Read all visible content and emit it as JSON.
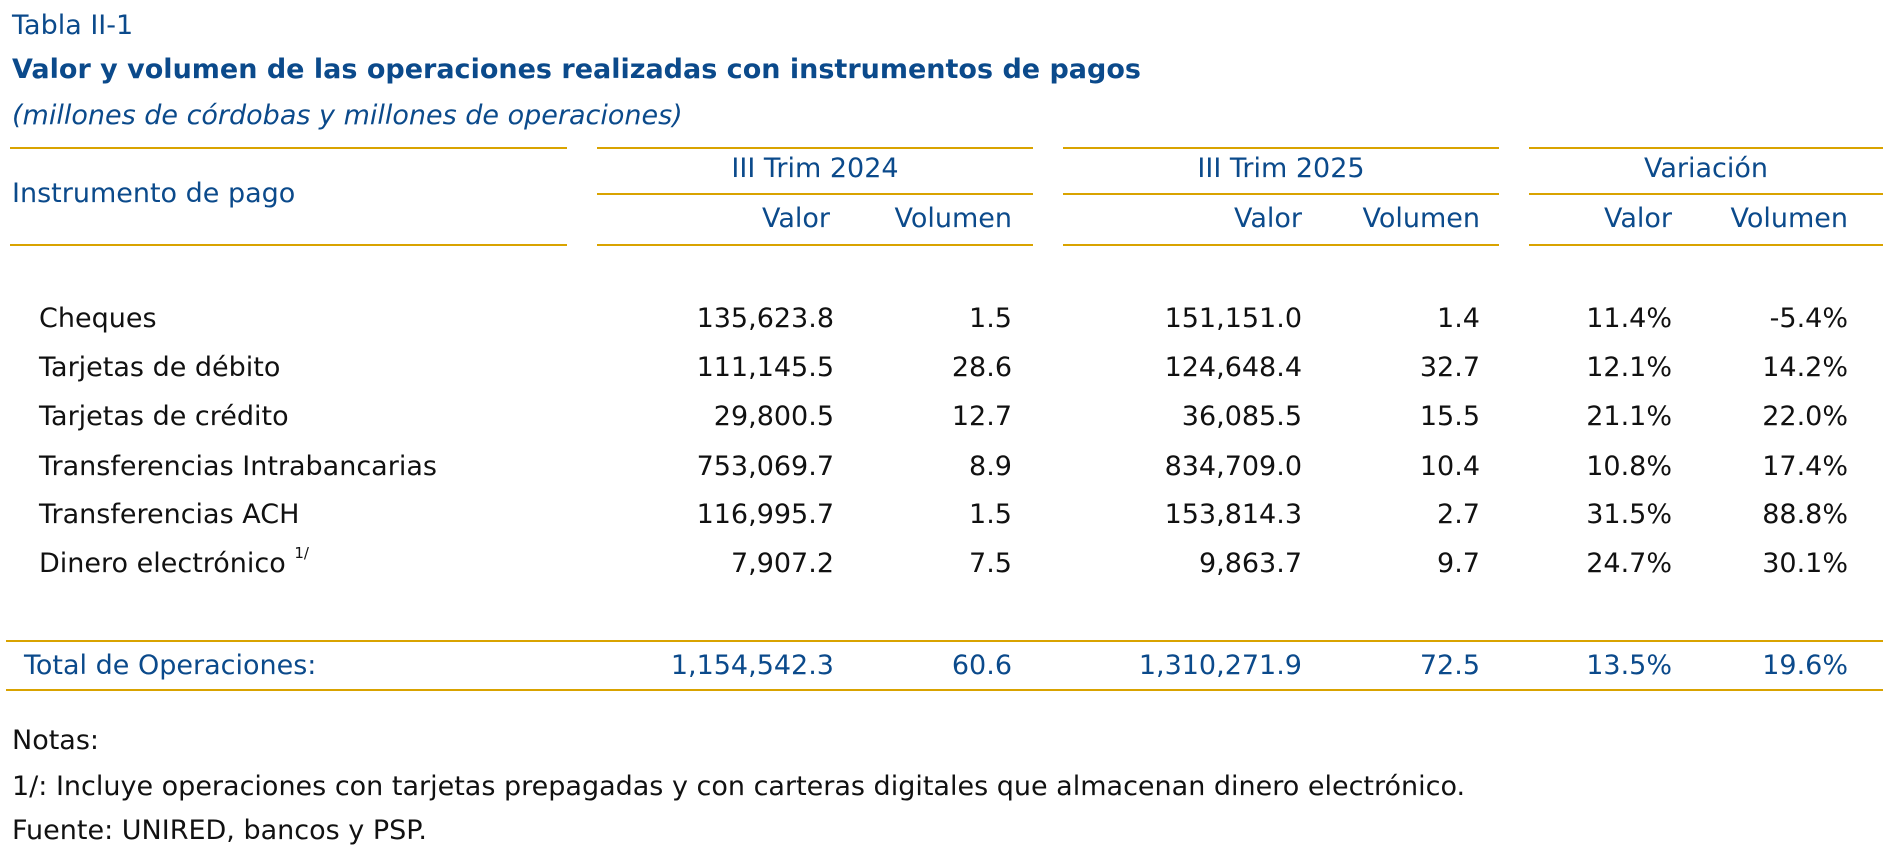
{
  "table_label": "Tabla II-1",
  "title": "Valor y volumen de las operaciones realizadas con instrumentos de pagos",
  "subtitle": "(millones de córdobas y millones de operaciones)",
  "header": {
    "row_label": "Instrumento de pago",
    "groups": [
      "III Trim 2024",
      "III Trim 2025",
      "Variación"
    ],
    "sub": [
      "Valor",
      "Volumen",
      "Valor",
      "Volumen",
      "Valor",
      "Volumen"
    ]
  },
  "rows": [
    {
      "label": "Cheques",
      "sup": "",
      "values": [
        "135,623.8",
        "1.5",
        "151,151.0",
        "1.4",
        "11.4%",
        "-5.4%"
      ]
    },
    {
      "label": "Tarjetas de débito",
      "sup": "",
      "values": [
        "111,145.5",
        "28.6",
        "124,648.4",
        "32.7",
        "12.1%",
        "14.2%"
      ]
    },
    {
      "label": "Tarjetas de crédito",
      "sup": "",
      "values": [
        "29,800.5",
        "12.7",
        "36,085.5",
        "15.5",
        "21.1%",
        "22.0%"
      ]
    },
    {
      "label": "Transferencias Intrabancarias",
      "sup": "",
      "values": [
        "753,069.7",
        "8.9",
        "834,709.0",
        "10.4",
        "10.8%",
        "17.4%"
      ]
    },
    {
      "label": "Transferencias ACH",
      "sup": "",
      "values": [
        "116,995.7",
        "1.5",
        "153,814.3",
        "2.7",
        "31.5%",
        "88.8%"
      ]
    },
    {
      "label": "Dinero electrónico ",
      "sup": "1/",
      "values": [
        "7,907.2",
        "7.5",
        "9,863.7",
        "9.7",
        "24.7%",
        "30.1%"
      ]
    }
  ],
  "total": {
    "label": "Total de Operaciones:",
    "values": [
      "1,154,542.3",
      "60.6",
      "1,310,271.9",
      "72.5",
      "13.5%",
      "19.6%"
    ]
  },
  "notes": [
    "Notas:",
    "1/: Incluye operaciones con tarjetas prepagadas y con carteras digitales que almacenan dinero electrónico.",
    "Fuente: UNIRED, bancos y PSP."
  ],
  "colors": {
    "accent": "#0b4a8b",
    "rule": "#d9a300"
  }
}
